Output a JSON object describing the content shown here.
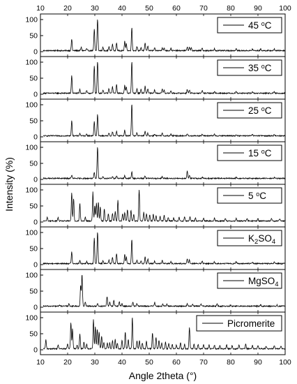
{
  "chart_data": {
    "type": "line",
    "xlabel": "Angle 2theta (°)",
    "ylabel": "Intensity (%)",
    "xlim": [
      10,
      100
    ],
    "ylim": [
      0,
      100
    ],
    "x_ticks": [
      "10",
      "20",
      "30",
      "40",
      "50",
      "60",
      "70",
      "80",
      "90",
      "100"
    ],
    "y_ticks": [
      "0",
      "50",
      "100"
    ],
    "layout": "stacked panels, shared x axis on top and bottom, legend in upper-right of each panel",
    "series": [
      {
        "name": "45 °C",
        "peaks": [
          [
            21.5,
            36
          ],
          [
            25.0,
            10
          ],
          [
            27.0,
            6
          ],
          [
            29.8,
            67
          ],
          [
            31.0,
            100
          ],
          [
            33.0,
            10
          ],
          [
            35.2,
            12
          ],
          [
            36.5,
            20
          ],
          [
            38.0,
            24
          ],
          [
            41.0,
            30
          ],
          [
            41.6,
            22
          ],
          [
            43.6,
            72
          ],
          [
            45.5,
            12
          ],
          [
            47.0,
            10
          ],
          [
            48.5,
            24
          ],
          [
            49.5,
            14
          ],
          [
            52.0,
            8
          ],
          [
            54.8,
            10
          ],
          [
            55.5,
            8
          ],
          [
            58.0,
            8
          ],
          [
            64.0,
            12
          ],
          [
            64.8,
            10
          ],
          [
            65.5,
            8
          ],
          [
            69.5,
            8
          ],
          [
            74.0,
            6
          ],
          [
            82.0,
            6
          ],
          [
            88.0,
            5
          ],
          [
            91.0,
            5
          ],
          [
            96.0,
            5
          ]
        ]
      },
      {
        "name": "35 °C",
        "peaks": [
          [
            21.5,
            55
          ],
          [
            24.5,
            12
          ],
          [
            27.0,
            8
          ],
          [
            29.8,
            85
          ],
          [
            31.0,
            100
          ],
          [
            33.0,
            10
          ],
          [
            35.2,
            14
          ],
          [
            36.5,
            20
          ],
          [
            38.0,
            26
          ],
          [
            41.0,
            24
          ],
          [
            41.6,
            20
          ],
          [
            43.6,
            100
          ],
          [
            45.5,
            14
          ],
          [
            47.0,
            12
          ],
          [
            48.5,
            22
          ],
          [
            49.5,
            14
          ],
          [
            52.0,
            10
          ],
          [
            54.8,
            14
          ],
          [
            55.5,
            10
          ],
          [
            58.0,
            8
          ],
          [
            64.0,
            12
          ],
          [
            64.8,
            10
          ],
          [
            69.5,
            8
          ],
          [
            74.0,
            6
          ],
          [
            82.0,
            6
          ],
          [
            88.0,
            5
          ],
          [
            96.0,
            4
          ]
        ]
      },
      {
        "name": "25 °C",
        "peaks": [
          [
            21.5,
            46
          ],
          [
            24.5,
            8
          ],
          [
            27.0,
            6
          ],
          [
            29.8,
            45
          ],
          [
            31.0,
            66
          ],
          [
            35.2,
            8
          ],
          [
            36.5,
            12
          ],
          [
            38.0,
            14
          ],
          [
            41.0,
            18
          ],
          [
            43.6,
            100
          ],
          [
            45.5,
            10
          ],
          [
            48.5,
            14
          ],
          [
            49.5,
            8
          ],
          [
            52.0,
            6
          ],
          [
            54.8,
            8
          ],
          [
            58.0,
            5
          ],
          [
            64.0,
            6
          ],
          [
            69.5,
            5
          ],
          [
            74.0,
            5
          ],
          [
            82.0,
            4
          ],
          [
            88.0,
            4
          ],
          [
            96.0,
            4
          ]
        ]
      },
      {
        "name": "15 °C",
        "peaks": [
          [
            21.5,
            10
          ],
          [
            29.8,
            18
          ],
          [
            31.0,
            100
          ],
          [
            33.0,
            6
          ],
          [
            36.5,
            6
          ],
          [
            38.0,
            8
          ],
          [
            41.0,
            8
          ],
          [
            43.6,
            20
          ],
          [
            48.5,
            8
          ],
          [
            54.8,
            6
          ],
          [
            64.0,
            24
          ],
          [
            64.8,
            10
          ],
          [
            69.5,
            4
          ],
          [
            82.0,
            3
          ],
          [
            96.0,
            3
          ]
        ]
      },
      {
        "name": "5 °C",
        "peaks": [
          [
            12.5,
            12
          ],
          [
            16.5,
            10
          ],
          [
            21.5,
            88
          ],
          [
            22.2,
            70
          ],
          [
            24.5,
            55
          ],
          [
            26.5,
            12
          ],
          [
            29.3,
            90
          ],
          [
            30.0,
            48
          ],
          [
            30.6,
            58
          ],
          [
            31.3,
            60
          ],
          [
            32.0,
            45
          ],
          [
            33.5,
            38
          ],
          [
            35.0,
            22
          ],
          [
            36.5,
            24
          ],
          [
            37.5,
            30
          ],
          [
            38.5,
            65
          ],
          [
            40.2,
            22
          ],
          [
            41.0,
            28
          ],
          [
            42.0,
            35
          ],
          [
            43.3,
            32
          ],
          [
            44.3,
            20
          ],
          [
            46.3,
            100
          ],
          [
            48.0,
            28
          ],
          [
            49.0,
            22
          ],
          [
            50.2,
            18
          ],
          [
            51.5,
            22
          ],
          [
            52.5,
            16
          ],
          [
            54.0,
            14
          ],
          [
            55.5,
            18
          ],
          [
            57.0,
            12
          ],
          [
            59.0,
            10
          ],
          [
            61.0,
            12
          ],
          [
            63.0,
            14
          ],
          [
            65.0,
            12
          ],
          [
            67.0,
            10
          ],
          [
            70.0,
            10
          ],
          [
            74.0,
            10
          ],
          [
            78.0,
            8
          ],
          [
            82.0,
            8
          ],
          [
            86.0,
            8
          ],
          [
            90.0,
            8
          ],
          [
            95.0,
            8
          ],
          [
            98.0,
            6
          ]
        ]
      },
      {
        "name": "K2SO4",
        "peaks": [
          [
            21.5,
            36
          ],
          [
            24.5,
            10
          ],
          [
            27.0,
            6
          ],
          [
            29.8,
            80
          ],
          [
            31.0,
            100
          ],
          [
            33.0,
            10
          ],
          [
            35.2,
            12
          ],
          [
            36.5,
            20
          ],
          [
            38.0,
            30
          ],
          [
            41.0,
            30
          ],
          [
            41.6,
            20
          ],
          [
            43.6,
            75
          ],
          [
            45.5,
            10
          ],
          [
            47.0,
            10
          ],
          [
            48.5,
            22
          ],
          [
            49.5,
            14
          ],
          [
            52.0,
            8
          ],
          [
            54.8,
            10
          ],
          [
            58.0,
            6
          ],
          [
            64.0,
            14
          ],
          [
            64.8,
            12
          ],
          [
            69.5,
            8
          ],
          [
            74.0,
            6
          ],
          [
            82.0,
            6
          ],
          [
            88.0,
            5
          ],
          [
            96.0,
            5
          ]
        ]
      },
      {
        "name": "MgSO4",
        "peaks": [
          [
            17.0,
            4
          ],
          [
            20.5,
            8
          ],
          [
            24.8,
            65
          ],
          [
            25.3,
            100
          ],
          [
            26.5,
            12
          ],
          [
            31.0,
            8
          ],
          [
            34.5,
            30
          ],
          [
            35.5,
            14
          ],
          [
            37.0,
            18
          ],
          [
            39.0,
            14
          ],
          [
            40.0,
            8
          ],
          [
            44.0,
            12
          ],
          [
            45.5,
            8
          ],
          [
            52.0,
            12
          ],
          [
            55.0,
            8
          ],
          [
            56.5,
            6
          ],
          [
            64.0,
            8
          ],
          [
            66.0,
            6
          ],
          [
            69.0,
            6
          ],
          [
            75.0,
            8
          ],
          [
            80.0,
            4
          ],
          [
            91.0,
            4
          ],
          [
            97.0,
            4
          ]
        ]
      },
      {
        "name": "Picromerite",
        "peaks": [
          [
            12.0,
            28
          ],
          [
            16.5,
            12
          ],
          [
            20.0,
            16
          ],
          [
            21.2,
            82
          ],
          [
            21.8,
            62
          ],
          [
            23.5,
            12
          ],
          [
            24.5,
            48
          ],
          [
            26.0,
            20
          ],
          [
            27.0,
            14
          ],
          [
            29.5,
            90
          ],
          [
            30.2,
            68
          ],
          [
            30.9,
            62
          ],
          [
            31.6,
            52
          ],
          [
            32.5,
            40
          ],
          [
            33.3,
            20
          ],
          [
            34.6,
            18
          ],
          [
            35.5,
            20
          ],
          [
            36.5,
            26
          ],
          [
            37.5,
            30
          ],
          [
            38.3,
            18
          ],
          [
            40.0,
            26
          ],
          [
            41.2,
            52
          ],
          [
            42.3,
            30
          ],
          [
            43.8,
            100
          ],
          [
            45.5,
            24
          ],
          [
            46.4,
            26
          ],
          [
            47.5,
            18
          ],
          [
            49.0,
            22
          ],
          [
            51.2,
            50
          ],
          [
            52.5,
            36
          ],
          [
            53.6,
            26
          ],
          [
            54.6,
            18
          ],
          [
            56.0,
            20
          ],
          [
            57.2,
            16
          ],
          [
            58.5,
            14
          ],
          [
            60.0,
            12
          ],
          [
            61.5,
            18
          ],
          [
            63.0,
            14
          ],
          [
            64.8,
            65
          ],
          [
            66.5,
            16
          ],
          [
            68.0,
            14
          ],
          [
            70.0,
            14
          ],
          [
            72.0,
            12
          ],
          [
            74.0,
            12
          ],
          [
            76.0,
            10
          ],
          [
            78.5,
            12
          ],
          [
            80.5,
            10
          ],
          [
            83.0,
            12
          ],
          [
            85.5,
            14
          ],
          [
            88.0,
            10
          ],
          [
            90.0,
            10
          ],
          [
            93.0,
            8
          ],
          [
            96.0,
            10
          ],
          [
            98.5,
            8
          ]
        ]
      }
    ]
  }
}
